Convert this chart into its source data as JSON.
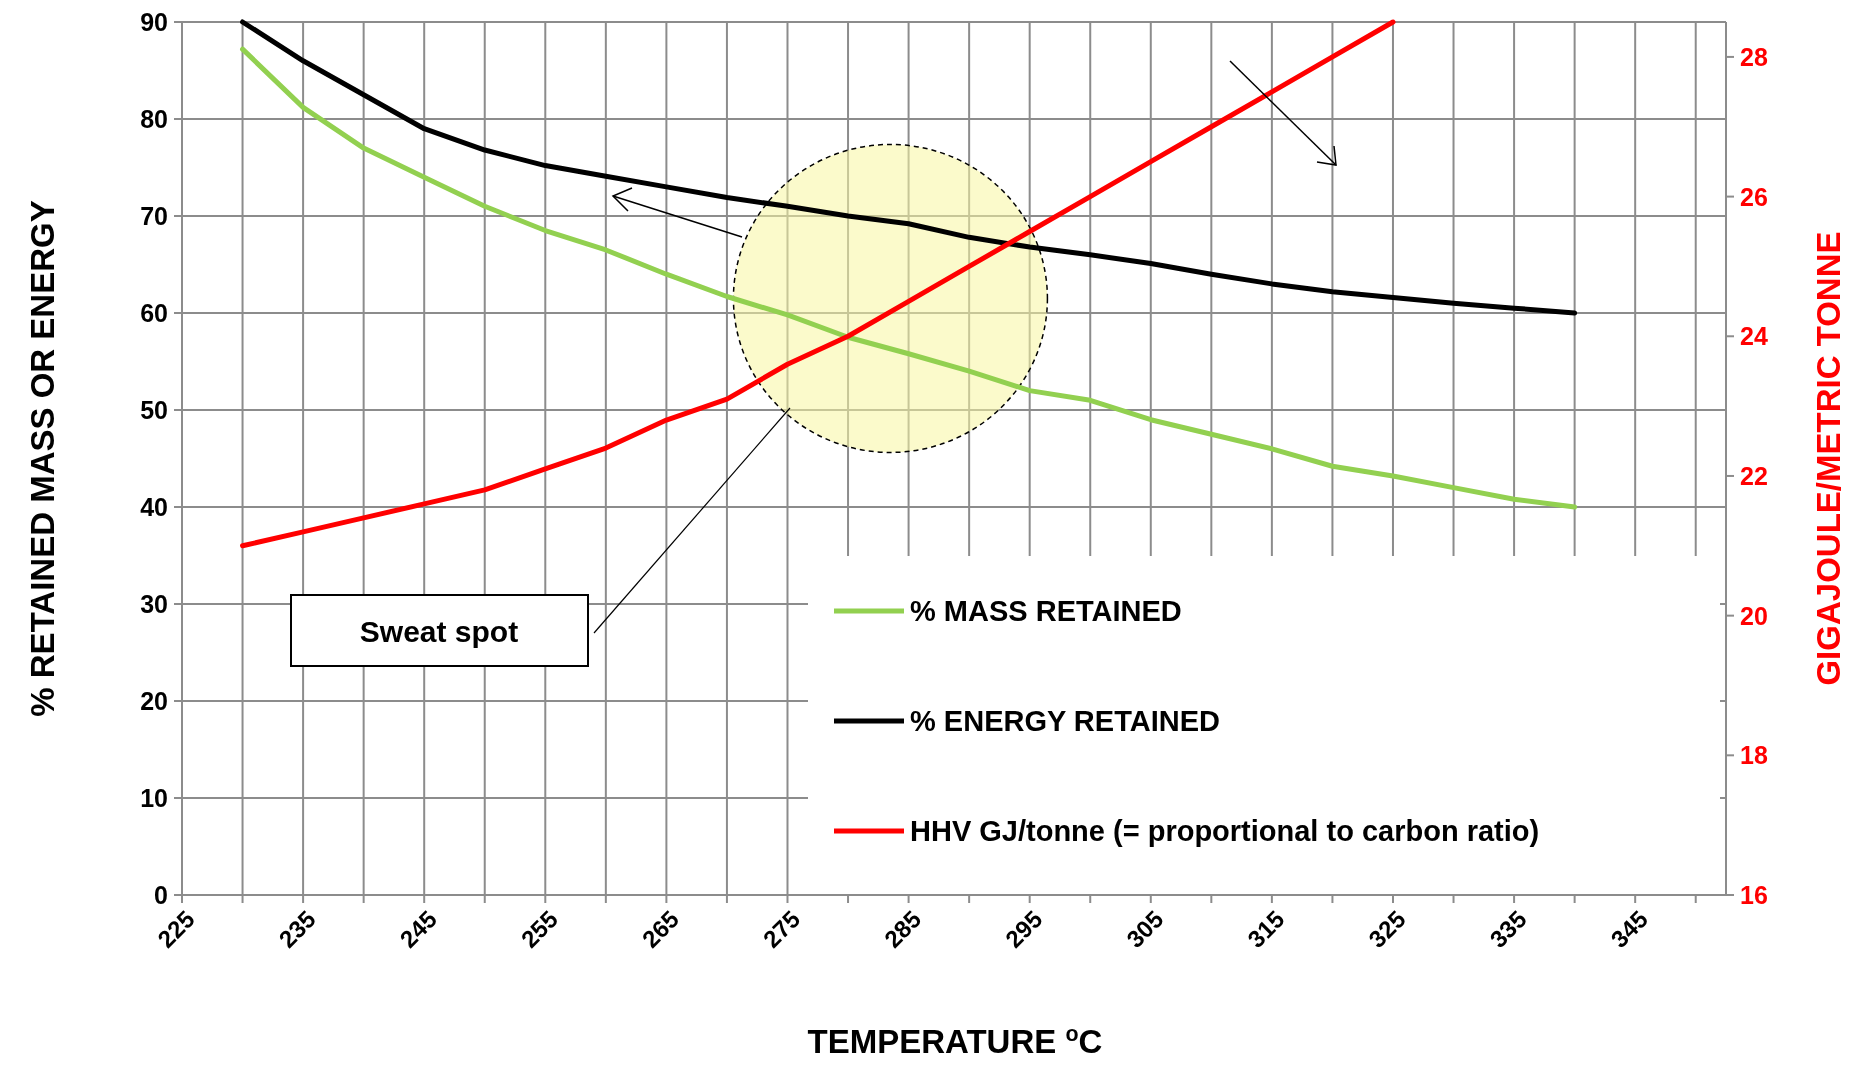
{
  "chart_data": {
    "type": "line",
    "xlabel": "TEMPERATURE $^{o}$C",
    "ylabel": "% RETAINED MASS OR ENERGY",
    "y2label": "GIGAJOULE/METRIC TONNE",
    "x": [
      230,
      235,
      240,
      245,
      250,
      255,
      260,
      265,
      270,
      275,
      280,
      285,
      290,
      295,
      300,
      305,
      310,
      315,
      320,
      325,
      330,
      335,
      340
    ],
    "xlim": [
      225,
      352.5
    ],
    "xticks": [
      225,
      {
        "value": 230,
        "label": null
      },
      235,
      {
        "value": 240,
        "label": null
      },
      245,
      {
        "value": 250,
        "label": null
      },
      255,
      {
        "value": 260,
        "label": null
      },
      265,
      {
        "value": 270,
        "label": null
      },
      275,
      {
        "value": 280,
        "label": null
      },
      285,
      {
        "value": 290,
        "label": null
      },
      295,
      {
        "value": 300,
        "label": null
      },
      305,
      {
        "value": 310,
        "label": null
      },
      315,
      {
        "value": 320,
        "label": null
      },
      325,
      {
        "value": 330,
        "label": null
      },
      335,
      {
        "value": 340,
        "label": null
      },
      345,
      {
        "value": 350,
        "label": null
      }
    ],
    "ylim": [
      0,
      90
    ],
    "yticks": [
      0,
      10,
      20,
      30,
      40,
      50,
      60,
      70,
      80,
      90
    ],
    "y2lim": [
      16,
      28.5
    ],
    "y2ticks": [
      16,
      18,
      20,
      22,
      24,
      26,
      28
    ],
    "grid": true,
    "legend": "bottom right",
    "marker": "none",
    "line_style": "solid",
    "series": [
      {
        "name": "% MASS RETAINED",
        "color": "#92d050",
        "values": [
          87.2,
          81.2,
          77,
          74,
          71,
          68.5,
          66.5,
          64,
          61.7,
          59.8,
          57.5,
          55.8,
          54,
          52,
          51,
          49,
          47.5,
          46,
          44.2,
          43.2,
          42,
          40.8,
          40
        ]
      },
      {
        "name": "% ENERGY RETAINED",
        "color": "#000000",
        "values": [
          90,
          86,
          82.5,
          79,
          76.8,
          75.2,
          74.1,
          73,
          71.9,
          71,
          70,
          69.2,
          67.8,
          66.8,
          66,
          65.1,
          64,
          63,
          62.2,
          61.6,
          61,
          60.5,
          60
        ]
      },
      {
        "name": "HHV GJ/tonne (= proportional to carbon ratio)",
        "color": "#ff0000",
        "axis": "y2",
        "values": [
          21,
          21.2,
          21.4,
          21.6,
          21.8,
          22.1,
          22.4,
          22.8,
          23.1,
          23.6,
          24,
          24.5,
          25,
          25.5,
          26,
          26.5,
          27,
          27.5,
          28,
          28.5,
          null,
          null,
          null
        ]
      }
    ],
    "annotations": [
      "Sweat spot"
    ]
  }
}
